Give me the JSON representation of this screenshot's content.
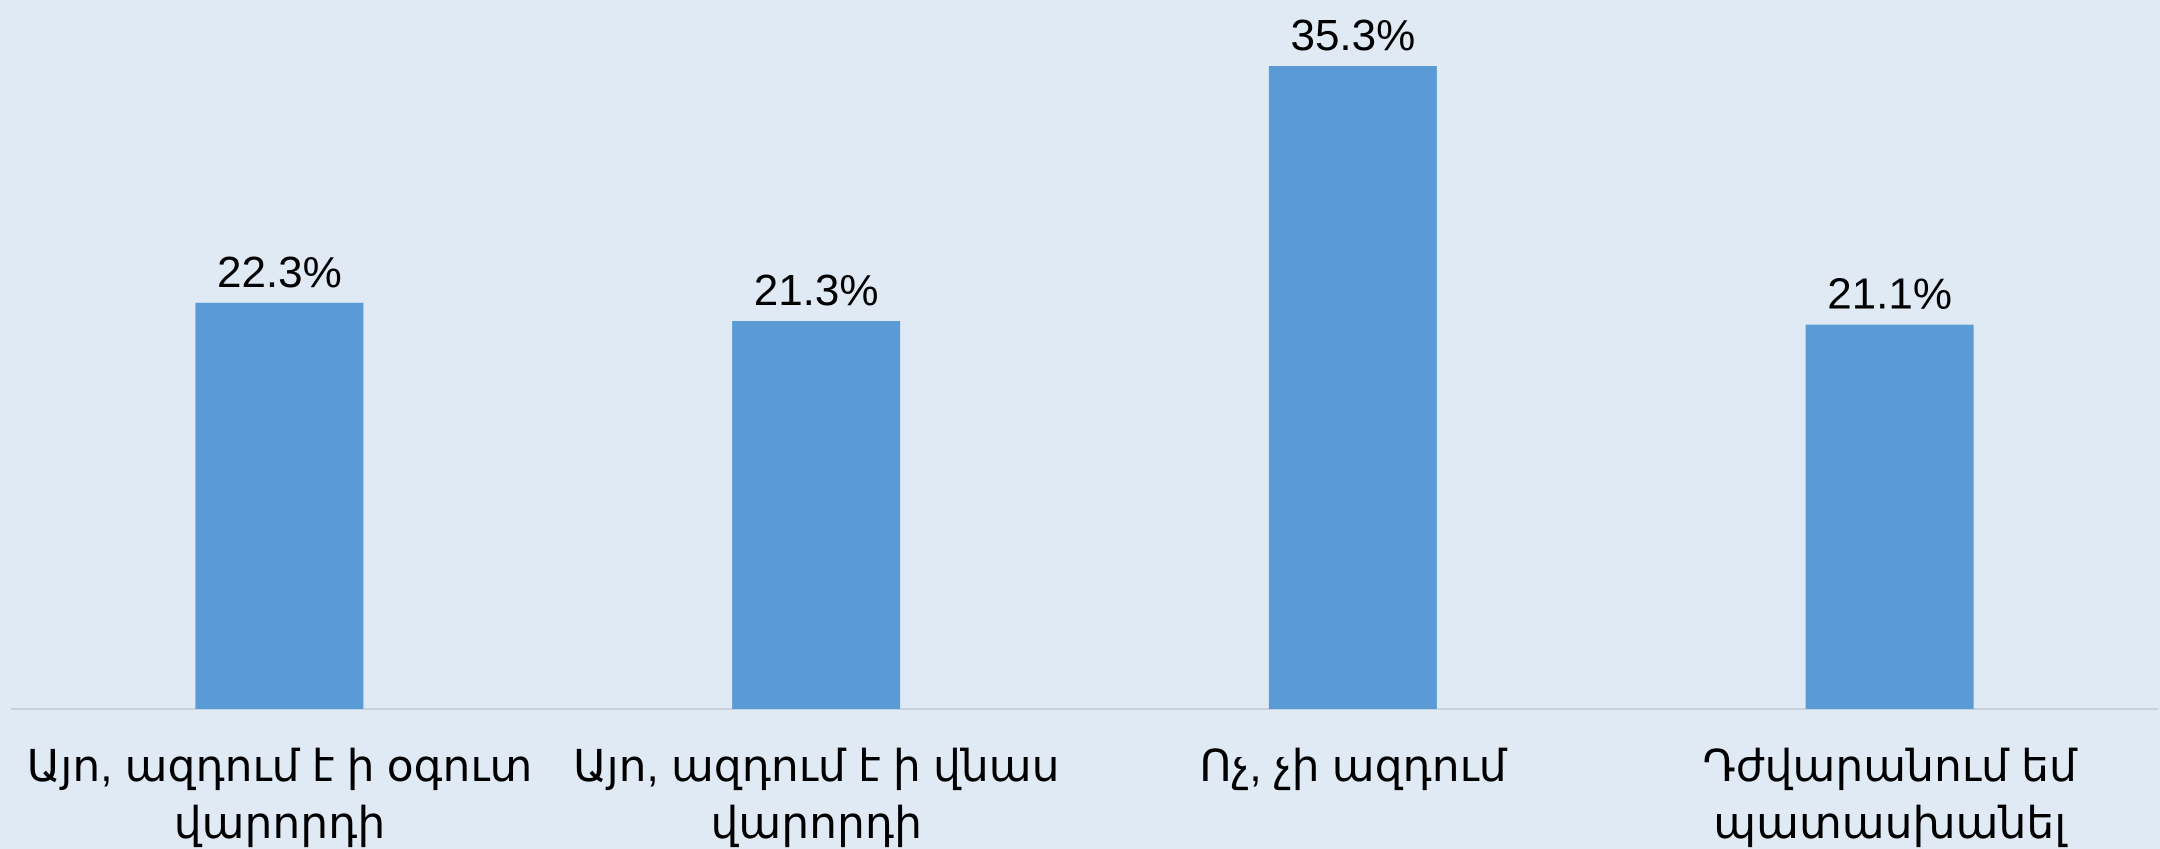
{
  "chart_data": {
    "type": "bar",
    "categories": [
      "Այո, ազդում է ի օգուտ վարորդի",
      "Այո, ազդում է ի վնաս վարորդի",
      "Ոչ, չի ազդում",
      "Դժվարանում եմ պատասխանել"
    ],
    "values": [
      22.3,
      21.3,
      35.3,
      21.1
    ],
    "value_labels": [
      "22.3%",
      "21.3%",
      "35.3%",
      "21.1%"
    ],
    "color": "#5b9bd5"
  }
}
